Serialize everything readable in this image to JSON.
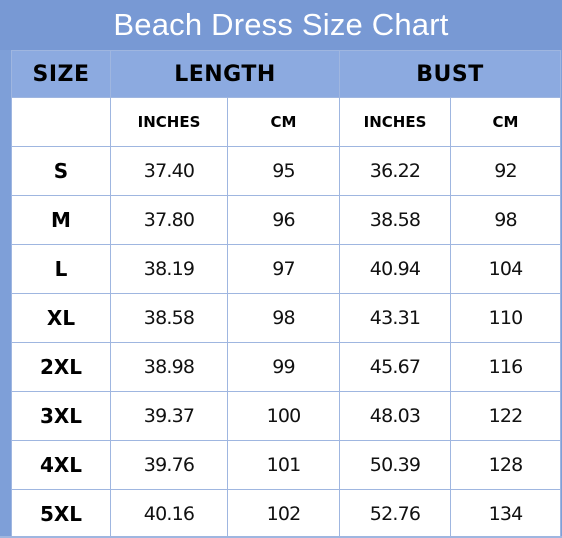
{
  "title": "Beach Dress Size Chart",
  "colors": {
    "header_band": "#7899d4",
    "column_header": "#8caae0",
    "grid_line": "#9fb6e0",
    "title_text": "#ffffff"
  },
  "headers": {
    "size": "SIZE",
    "length": "LENGTH",
    "bust": "BUST"
  },
  "subheaders": {
    "length_inches": "INCHES",
    "length_cm": "CM",
    "bust_inches": "INCHES",
    "bust_cm": "CM"
  },
  "rows": [
    {
      "size": "S",
      "length_in": "37.40",
      "length_cm": "95",
      "bust_in": "36.22",
      "bust_cm": "92"
    },
    {
      "size": "M",
      "length_in": "37.80",
      "length_cm": "96",
      "bust_in": "38.58",
      "bust_cm": "98"
    },
    {
      "size": "L",
      "length_in": "38.19",
      "length_cm": "97",
      "bust_in": "40.94",
      "bust_cm": "104"
    },
    {
      "size": "XL",
      "length_in": "38.58",
      "length_cm": "98",
      "bust_in": "43.31",
      "bust_cm": "110"
    },
    {
      "size": "2XL",
      "length_in": "38.98",
      "length_cm": "99",
      "bust_in": "45.67",
      "bust_cm": "116"
    },
    {
      "size": "3XL",
      "length_in": "39.37",
      "length_cm": "100",
      "bust_in": "48.03",
      "bust_cm": "122"
    },
    {
      "size": "4XL",
      "length_in": "39.76",
      "length_cm": "101",
      "bust_in": "50.39",
      "bust_cm": "128"
    },
    {
      "size": "5XL",
      "length_in": "40.16",
      "length_cm": "102",
      "bust_in": "52.76",
      "bust_cm": "134"
    }
  ]
}
